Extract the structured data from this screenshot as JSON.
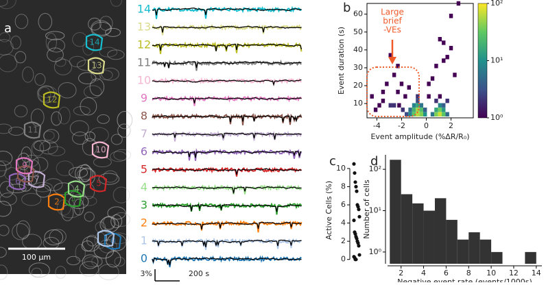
{
  "panel_a": {
    "letter": "a",
    "scale_bar": "100 µm",
    "rois": [
      {
        "label": "0",
        "color": "#1f77b4"
      },
      {
        "label": "1",
        "color": "#aec7e8"
      },
      {
        "label": "2",
        "color": "#ff7f0e"
      },
      {
        "label": "3",
        "color": "#2ca02c"
      },
      {
        "label": "4",
        "color": "#98df8a"
      },
      {
        "label": "5",
        "color": "#d62728"
      },
      {
        "label": "6",
        "color": "#9467bd"
      },
      {
        "label": "7",
        "color": "#c5b0d5"
      },
      {
        "label": "8",
        "color": "#8c564b"
      },
      {
        "label": "9",
        "color": "#e377c2"
      },
      {
        "label": "10",
        "color": "#f7b6d2"
      },
      {
        "label": "11",
        "color": "#7f7f7f"
      },
      {
        "label": "12",
        "color": "#bcbd22"
      },
      {
        "label": "13",
        "color": "#dbdb8d"
      },
      {
        "label": "14",
        "color": "#17becf"
      }
    ],
    "trace_scale": {
      "amplitude": "3%",
      "time": "200 s"
    }
  },
  "chart_data": [
    {
      "type": "heatmap",
      "letter": "b",
      "x_label": "Event amplitude (%ΔR/R₀)",
      "y_label": "Event duration (s)",
      "xlim": [
        -4.8,
        3.8
      ],
      "ylim": [
        2,
        66
      ],
      "xticks": [
        -4,
        -2,
        0,
        2
      ],
      "yticks": [
        10,
        20,
        30,
        40,
        50,
        60
      ],
      "colorbar": {
        "log": true,
        "lim": [
          1,
          100
        ],
        "ticks": [
          {
            "value": 1,
            "label": "10⁰"
          },
          {
            "value": 10,
            "label": "10¹"
          },
          {
            "value": 100,
            "label": "10²"
          }
        ]
      },
      "annotation": {
        "lines": [
          "Large",
          "brief",
          "-VEs"
        ],
        "color": "#f05a28"
      },
      "x": [
        -1.6,
        -1.3,
        -1.0,
        -0.7,
        -0.4,
        -0.1,
        -1.3,
        -1.0,
        -0.7,
        -0.4,
        -0.1,
        -1.0,
        -0.7,
        -0.4,
        -0.7,
        -1.9,
        -2.2,
        0.5,
        0.8,
        1.1,
        1.4,
        1.7,
        0.8,
        1.1,
        1.4,
        1.1,
        1.4,
        0.8,
        1.7,
        1.1,
        -4.4,
        -3.5,
        -2.9,
        -3.2,
        -2.6,
        -2.9,
        -2.3,
        -4.1,
        -3.8,
        -2.0,
        -1.7,
        -1.4,
        -2.6,
        -3.5,
        -2.3,
        0.2,
        0.5,
        1.4,
        2.0,
        1.7,
        2.0,
        1.4,
        2.3,
        0.8,
        1.1,
        2.6,
        -0.7,
        0.2
      ],
      "y": [
        4,
        4,
        4,
        4,
        4,
        4,
        6.5,
        6.5,
        6.5,
        6.5,
        6.5,
        9,
        9,
        9,
        11.5,
        6.5,
        9,
        4,
        4,
        4,
        4,
        4,
        6.5,
        6.5,
        6.5,
        9,
        9,
        11.5,
        11.5,
        14,
        14,
        11.5,
        9,
        21,
        26,
        37,
        16.5,
        6.5,
        9,
        21,
        14,
        19,
        9,
        16.5,
        31,
        21,
        24,
        34,
        41,
        36,
        59,
        44,
        26,
        31,
        46,
        66,
        14,
        14
      ],
      "values": [
        3,
        8,
        30,
        60,
        40,
        10,
        5,
        20,
        50,
        25,
        4,
        8,
        15,
        6,
        3,
        2,
        1,
        6,
        40,
        70,
        30,
        5,
        15,
        35,
        12,
        8,
        4,
        2,
        2,
        1,
        1,
        1,
        2,
        1,
        1,
        1,
        1,
        1,
        1,
        1,
        1,
        1,
        2,
        1,
        1,
        1,
        1,
        1,
        1,
        1,
        1,
        1,
        1,
        1,
        1,
        1,
        2,
        1
      ]
    },
    {
      "type": "strip",
      "letter": "c",
      "y_label": "Active Cells (%)",
      "ylim": [
        -0.7,
        11.5
      ],
      "yticks": [
        0,
        2,
        4,
        6,
        8,
        10
      ],
      "values": [
        10.5,
        9.5,
        8.5,
        8,
        7.5,
        6,
        5.8,
        5.5,
        4.7,
        4.3,
        3,
        2.8,
        2.5,
        2.3,
        2,
        1.8,
        1.5,
        0.5,
        0.3,
        0.2,
        0,
        0
      ],
      "color": "#111111"
    },
    {
      "type": "histogram",
      "letter": "d",
      "x_label": "Negative event rate (events/1000s)",
      "y_label": "Number of cells",
      "log_y": true,
      "xlim": [
        0.8,
        14.5
      ],
      "ylim": [
        0.52,
        224
      ],
      "xticks": [
        2,
        4,
        6,
        8,
        10,
        12,
        14
      ],
      "yticks": [
        {
          "value": 1,
          "label": "10⁰"
        },
        {
          "value": 10,
          "label": "10¹"
        },
        {
          "value": 100,
          "label": "10²"
        }
      ],
      "bins": [
        1,
        2,
        3,
        4,
        5,
        6,
        7,
        8,
        9,
        10,
        11,
        12,
        13,
        14
      ],
      "values": [
        170,
        25,
        15,
        10,
        20,
        6,
        2,
        3,
        2,
        1,
        0,
        0,
        1
      ],
      "color": "#333333"
    }
  ]
}
